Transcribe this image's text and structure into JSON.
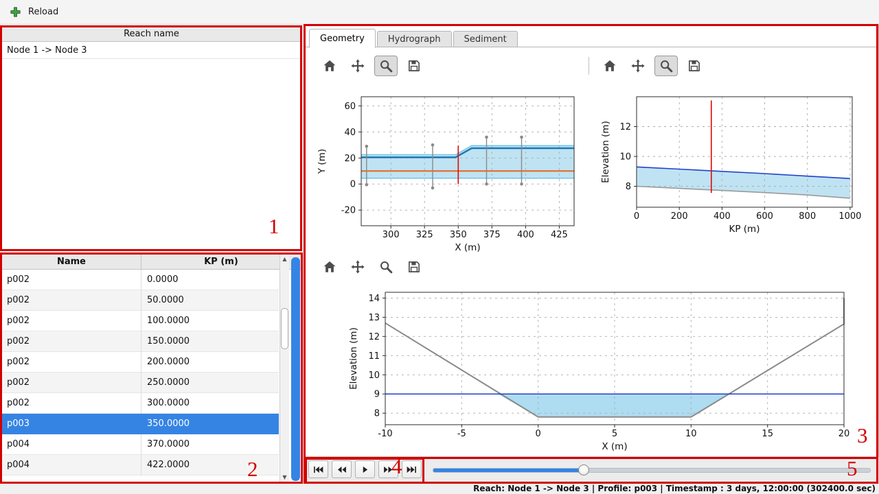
{
  "app": {
    "accent_color": "#3584e4",
    "annotation_color": "#d40000"
  },
  "top_toolbar": {
    "reload_label": "Reload",
    "reload_icon": "green-plus-icon"
  },
  "reach_panel": {
    "header": "Reach name",
    "items": [
      "Node 1 -> Node 3"
    ]
  },
  "profile_table": {
    "columns": [
      "Name",
      "KP (m)"
    ],
    "rows": [
      {
        "name": "p002",
        "kp": "0.0000",
        "selected": false
      },
      {
        "name": "p002",
        "kp": "50.0000",
        "selected": false
      },
      {
        "name": "p002",
        "kp": "100.0000",
        "selected": false
      },
      {
        "name": "p002",
        "kp": "150.0000",
        "selected": false
      },
      {
        "name": "p002",
        "kp": "200.0000",
        "selected": false
      },
      {
        "name": "p002",
        "kp": "250.0000",
        "selected": false
      },
      {
        "name": "p002",
        "kp": "300.0000",
        "selected": false
      },
      {
        "name": "p003",
        "kp": "350.0000",
        "selected": true
      },
      {
        "name": "p004",
        "kp": "370.0000",
        "selected": false
      },
      {
        "name": "p004",
        "kp": "422.0000",
        "selected": false
      }
    ]
  },
  "tabs": [
    {
      "label": "Geometry",
      "active": true
    },
    {
      "label": "Hydrograph",
      "active": false
    },
    {
      "label": "Sediment",
      "active": false
    }
  ],
  "plot_toolbars": [
    {
      "icons": [
        "home",
        "pan",
        "zoom",
        "save"
      ],
      "active": "zoom"
    },
    {
      "icons": [
        "home",
        "pan",
        "zoom",
        "save"
      ],
      "active": "zoom"
    },
    {
      "icons": [
        "home",
        "pan",
        "zoom",
        "save"
      ],
      "active": null
    }
  ],
  "playback": {
    "buttons": [
      {
        "name": "skip-start"
      },
      {
        "name": "rewind"
      },
      {
        "name": "play"
      },
      {
        "name": "fast-forward"
      },
      {
        "name": "skip-end"
      }
    ]
  },
  "timeline_slider": {
    "fraction": 0.345
  },
  "status_bar": {
    "text": "Reach: Node 1 -> Node 3 | Profile: p003 | Timestamp : 3 days, 12:00:00 (302400.0 sec)"
  },
  "annotations": [
    {
      "label": "1"
    },
    {
      "label": "2"
    },
    {
      "label": "3"
    },
    {
      "label": "4"
    },
    {
      "label": "5"
    }
  ],
  "chart_data": [
    {
      "id": "plan-view",
      "type": "line",
      "title": "",
      "xlabel": "X (m)",
      "ylabel": "Y (m)",
      "xlim": [
        278,
        436
      ],
      "ylim": [
        -32,
        67
      ],
      "xticks": [
        300,
        325,
        350,
        375,
        400,
        425
      ],
      "yticks": [
        -20,
        0,
        20,
        40,
        60
      ],
      "grid": true,
      "fills": [
        {
          "name": "channel-band-fill",
          "color": "#bfe3f2",
          "points": [
            [
              278,
              22.5
            ],
            [
              348,
              22.5
            ],
            [
              360,
              29.5
            ],
            [
              436,
              29.5
            ],
            [
              436,
              4.5
            ],
            [
              278,
              4.5
            ]
          ]
        }
      ],
      "series": [
        {
          "name": "band-top-edge",
          "color": "#6fc3e8",
          "width": 1.5,
          "points": [
            [
              278,
              22.5
            ],
            [
              348,
              22.5
            ],
            [
              360,
              29.5
            ],
            [
              436,
              29.5
            ]
          ]
        },
        {
          "name": "band-bottom-edge",
          "color": "#6fc3e8",
          "width": 1.5,
          "points": [
            [
              278,
              4.5
            ],
            [
              436,
              4.5
            ]
          ]
        },
        {
          "name": "bank-line",
          "color": "#1f77b4",
          "width": 2.5,
          "points": [
            [
              278,
              20.5
            ],
            [
              348,
              20.5
            ],
            [
              360,
              27.5
            ],
            [
              436,
              27.5
            ]
          ]
        },
        {
          "name": "centerline",
          "color": "#e8641e",
          "width": 2,
          "points": [
            [
              278,
              10
            ],
            [
              436,
              10
            ]
          ]
        }
      ],
      "vlines": [
        {
          "x": 282,
          "y0": -0.5,
          "y1": 29,
          "color": "#8a8a8a",
          "width": 1.4,
          "markers": true
        },
        {
          "x": 331,
          "y0": -3,
          "y1": 30,
          "color": "#8a8a8a",
          "width": 1.4,
          "markers": true
        },
        {
          "x": 350,
          "y0": 0,
          "y1": 29.5,
          "color": "#e01010",
          "width": 1.7,
          "markers": false
        },
        {
          "x": 371,
          "y0": 0,
          "y1": 36,
          "color": "#8a8a8a",
          "width": 1.4,
          "markers": true
        },
        {
          "x": 397,
          "y0": 0,
          "y1": 36,
          "color": "#8a8a8a",
          "width": 1.4,
          "markers": true
        }
      ]
    },
    {
      "id": "long-profile",
      "type": "line",
      "title": "",
      "xlabel": "KP (m)",
      "ylabel": "Elevation (m)",
      "xlim": [
        0,
        1010
      ],
      "ylim": [
        6.6,
        14.0
      ],
      "xticks": [
        0,
        200,
        400,
        600,
        800,
        1000
      ],
      "yticks": [
        8,
        10,
        12
      ],
      "grid": true,
      "fills": [
        {
          "name": "water-band-fill",
          "color": "#bfe3f2",
          "points": [
            [
              0,
              9.3
            ],
            [
              200,
              9.15
            ],
            [
              400,
              9.0
            ],
            [
              600,
              8.85
            ],
            [
              800,
              8.68
            ],
            [
              1000,
              8.52
            ],
            [
              1000,
              7.2
            ],
            [
              800,
              7.42
            ],
            [
              600,
              7.58
            ],
            [
              400,
              7.72
            ],
            [
              200,
              7.86
            ],
            [
              0,
              8.0
            ]
          ]
        }
      ],
      "series": [
        {
          "name": "water-level-line",
          "color": "#2040cc",
          "width": 1.6,
          "points": [
            [
              0,
              9.3
            ],
            [
              200,
              9.15
            ],
            [
              400,
              9.0
            ],
            [
              600,
              8.85
            ],
            [
              800,
              8.68
            ],
            [
              1000,
              8.52
            ]
          ]
        },
        {
          "name": "bed-level-line",
          "color": "#9a9a9a",
          "width": 1.6,
          "points": [
            [
              0,
              8.0
            ],
            [
              200,
              7.86
            ],
            [
              400,
              7.72
            ],
            [
              600,
              7.58
            ],
            [
              800,
              7.42
            ],
            [
              1000,
              7.2
            ]
          ]
        }
      ],
      "vlines": [
        {
          "x": 350,
          "y0": 7.55,
          "y1": 13.75,
          "color": "#e01010",
          "width": 1.7,
          "markers": false
        }
      ]
    },
    {
      "id": "cross-section",
      "type": "line",
      "title": "",
      "xlabel": "X (m)",
      "ylabel": "Elevation (m)",
      "xlim": [
        -10,
        20
      ],
      "ylim": [
        7.4,
        14.3
      ],
      "xticks": [
        -10,
        -5,
        0,
        5,
        10,
        15,
        20
      ],
      "yticks": [
        8,
        9,
        10,
        11,
        12,
        13,
        14
      ],
      "grid": true,
      "fills": [
        {
          "name": "water-area-fill",
          "color": "#aedcf0",
          "points": [
            [
              -2.64,
              9
            ],
            [
              0,
              7.8
            ],
            [
              10,
              7.8
            ],
            [
              12.45,
              9
            ]
          ]
        }
      ],
      "series": [
        {
          "name": "ground-line",
          "color": "#8a8a8a",
          "width": 2,
          "points": [
            [
              -10,
              12.7
            ],
            [
              0,
              7.8
            ],
            [
              10,
              7.8
            ],
            [
              20,
              12.65
            ],
            [
              20,
              14.0
            ]
          ]
        },
        {
          "name": "water-surface-line",
          "color": "#2040cc",
          "width": 1.5,
          "points": [
            [
              -10,
              9
            ],
            [
              20,
              9
            ]
          ]
        }
      ],
      "vlines": []
    }
  ]
}
